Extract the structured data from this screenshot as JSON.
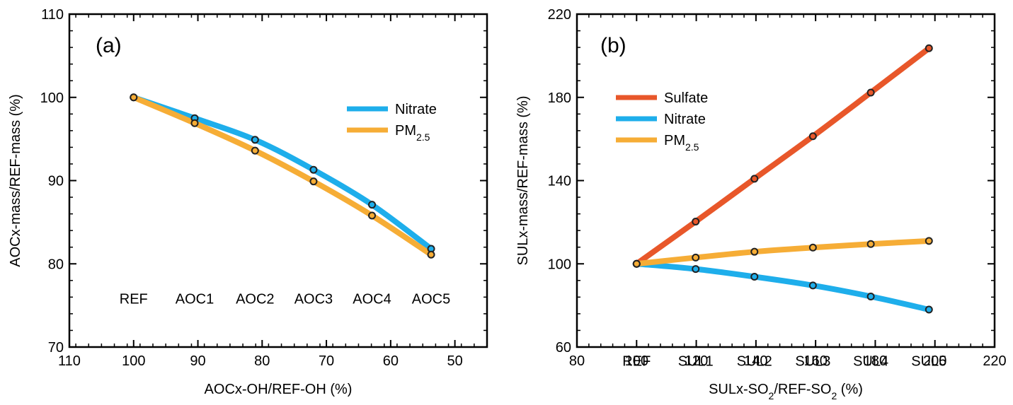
{
  "colors": {
    "sulfate": "#E8572A",
    "nitrate": "#1EAEEB",
    "pm25": "#F6AD36"
  },
  "chart_data": [
    {
      "type": "line",
      "panel_label": "(a)",
      "xlabel": "AOCx-OH/REF-OH (%)",
      "ylabel": "AOCx-mass/REF-mass (%)",
      "xlim": [
        110,
        45
      ],
      "ylim": [
        70,
        110
      ],
      "xticks": [
        110,
        100,
        90,
        80,
        70,
        60,
        50
      ],
      "yticks": [
        70,
        80,
        90,
        100,
        110
      ],
      "categories": [
        "REF",
        "AOC1",
        "AOC2",
        "AOC3",
        "AOC4",
        "AOC5"
      ],
      "category_y": 80,
      "x": [
        100,
        90.5,
        81.1,
        72.0,
        62.9,
        53.7
      ],
      "series": [
        {
          "name": "Nitrate",
          "color_key": "nitrate",
          "values": [
            100,
            97.5,
            94.9,
            91.3,
            87.1,
            81.8
          ]
        },
        {
          "name": "PM",
          "sub": "2.5",
          "color_key": "pm25",
          "values": [
            100,
            96.9,
            93.6,
            89.9,
            85.8,
            81.1
          ]
        }
      ],
      "legend": "right, upper-middle"
    },
    {
      "type": "line",
      "panel_label": "(b)",
      "xlabel_parts": [
        "SULx-SO",
        "2",
        "/REF-SO",
        "2",
        " (%)"
      ],
      "ylabel": "SULx-mass/REF-mass (%)",
      "xlim": [
        80,
        220
      ],
      "ylim": [
        60,
        220
      ],
      "xticks": [
        80,
        100,
        120,
        140,
        160,
        180,
        200,
        220
      ],
      "yticks": [
        60,
        100,
        140,
        180,
        220
      ],
      "categories": [
        "REF",
        "SUL1",
        "SUL2",
        "SUL3",
        "SUL4",
        "SUL5"
      ],
      "category_y": 70,
      "x": [
        100,
        119.8,
        139.5,
        159.1,
        178.5,
        198.0
      ],
      "series": [
        {
          "name": "Sulfate",
          "color_key": "sulfate",
          "values": [
            100,
            120.3,
            140.9,
            161.3,
            182.3,
            203.6
          ]
        },
        {
          "name": "Nitrate",
          "color_key": "nitrate",
          "values": [
            100,
            97.5,
            93.8,
            89.6,
            84.3,
            78.0
          ]
        },
        {
          "name": "PM",
          "sub": "2.5",
          "color_key": "pm25",
          "values": [
            100,
            103.0,
            105.8,
            107.8,
            109.5,
            111.0
          ]
        }
      ],
      "legend": "top-left"
    }
  ]
}
